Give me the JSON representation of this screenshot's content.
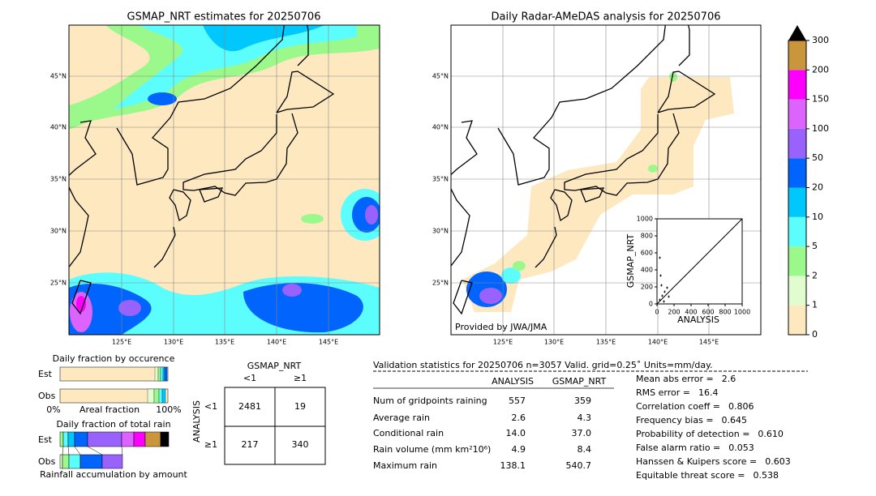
{
  "left_map": {
    "title": "GSMAP_NRT estimates for 20250706",
    "lat_labels": [
      "45°N",
      "40°N",
      "35°N",
      "30°N",
      "25°N"
    ],
    "lon_labels": [
      "125°E",
      "130°E",
      "135°E",
      "140°E",
      "145°E"
    ]
  },
  "right_map": {
    "title": "Daily Radar-AMeDAS analysis for 20250706",
    "lat_labels": [
      "45°N",
      "40°N",
      "35°N",
      "30°N",
      "25°N"
    ],
    "lon_labels": [
      "125°E",
      "130°E",
      "135°E",
      "140°E",
      "145°E"
    ],
    "credit": "Provided by JWA/JMA"
  },
  "scatter": {
    "xlabel": "ANALYSIS",
    "ylabel": "GSMAP_NRT",
    "ticks": [
      0,
      200,
      400,
      600,
      800,
      1000
    ]
  },
  "colorbar": {
    "levels": [
      0,
      1,
      2,
      5,
      10,
      20,
      50,
      100,
      150,
      200,
      300
    ],
    "colors": [
      "#fde8c0",
      "#e1fccf",
      "#9bf98c",
      "#5cfdfd",
      "#00c8fd",
      "#0064fd",
      "#9a62fd",
      "#dc63fd",
      "#fd00fd",
      "#c9963c"
    ]
  },
  "occurrence": {
    "title": "Daily fraction by occurence",
    "rows": [
      "Est",
      "Obs"
    ],
    "axis": [
      "0%",
      "Areal fraction",
      "100%"
    ]
  },
  "total_rain": {
    "title": "Daily fraction of total rain",
    "rows": [
      "Est",
      "Obs"
    ],
    "caption": "Rainfall accumulation by amount"
  },
  "contingency": {
    "col_title": "GSMAP_NRT",
    "row_title": "ANALYSIS",
    "cols": [
      "<1",
      "≥1"
    ],
    "rows": [
      "<1",
      "≥1"
    ],
    "cells": [
      [
        2481,
        19
      ],
      [
        217,
        340
      ]
    ]
  },
  "validation": {
    "header": "Validation statistics for 20250706  n=3057 Valid. grid=0.25˚ Units=mm/day.",
    "columns": [
      "ANALYSIS",
      "GSMAP_NRT"
    ],
    "rows": [
      {
        "label": "Num of gridpoints raining",
        "values": [
          "557",
          "359"
        ]
      },
      {
        "label": "Average rain",
        "values": [
          "2.6",
          "4.3"
        ]
      },
      {
        "label": "Conditional rain",
        "values": [
          "14.0",
          "37.0"
        ]
      },
      {
        "label": "Rain volume (mm km²10⁶)",
        "values": [
          "4.9",
          "8.4"
        ]
      },
      {
        "label": "Maximum rain",
        "values": [
          "138.1",
          "540.7"
        ]
      }
    ],
    "scores": [
      {
        "label": "Mean abs error =",
        "value": "2.6"
      },
      {
        "label": "RMS error =",
        "value": "16.4"
      },
      {
        "label": "Correlation coeff =",
        "value": "0.806"
      },
      {
        "label": "Frequency bias =",
        "value": "0.645"
      },
      {
        "label": "Probability of detection =",
        "value": "0.610"
      },
      {
        "label": "False alarm ratio =",
        "value": "0.053"
      },
      {
        "label": "Hanssen & Kuipers score =",
        "value": "0.603"
      },
      {
        "label": "Equitable threat score =",
        "value": "0.538"
      }
    ]
  }
}
